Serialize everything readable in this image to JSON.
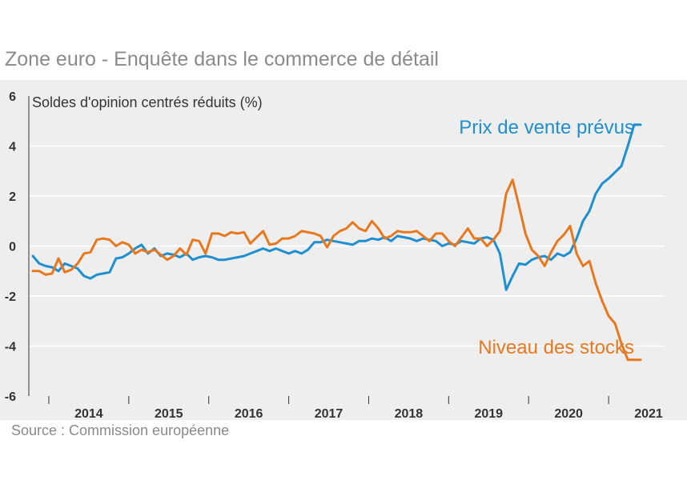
{
  "title": "Zone euro - Enquête dans le commerce de détail",
  "source": "Source : Commission européenne",
  "colors": {
    "plot_bg": "#eeeeee",
    "blue": "#1f8fcf",
    "orange": "#e8781e",
    "grid": "#ffffff",
    "axis": "#333333"
  },
  "chart_data": {
    "type": "line",
    "ylabel": "Soldes d'opinion centrés réduits (%)",
    "ylim": [
      -6,
      6
    ],
    "yticks": [
      6,
      4,
      2,
      0,
      -2,
      -4,
      -6
    ],
    "xlim": [
      2013.75,
      2021.7
    ],
    "year_labels": [
      "2014",
      "2015",
      "2016",
      "2017",
      "2018",
      "2019",
      "2020",
      "2021"
    ],
    "series": [
      {
        "name": "Prix de vente prévus",
        "color": "#1f8fcf",
        "label_position": "upper-right",
        "x": [
          2013.8,
          2013.88,
          2013.96,
          2014.04,
          2014.12,
          2014.2,
          2014.28,
          2014.36,
          2014.44,
          2014.52,
          2014.6,
          2014.68,
          2014.76,
          2014.84,
          2014.92,
          2015.0,
          2015.08,
          2015.16,
          2015.24,
          2015.32,
          2015.4,
          2015.48,
          2015.56,
          2015.64,
          2015.72,
          2015.8,
          2015.88,
          2015.96,
          2016.04,
          2016.12,
          2016.2,
          2016.28,
          2016.36,
          2016.44,
          2016.52,
          2016.6,
          2016.68,
          2016.76,
          2016.84,
          2016.92,
          2017.0,
          2017.08,
          2017.16,
          2017.24,
          2017.32,
          2017.4,
          2017.48,
          2017.56,
          2017.64,
          2017.72,
          2017.8,
          2017.88,
          2017.96,
          2018.04,
          2018.12,
          2018.2,
          2018.28,
          2018.36,
          2018.44,
          2018.52,
          2018.6,
          2018.68,
          2018.76,
          2018.84,
          2018.92,
          2019.0,
          2019.08,
          2019.16,
          2019.24,
          2019.32,
          2019.4,
          2019.48,
          2019.56,
          2019.64,
          2019.72,
          2019.8,
          2019.88,
          2019.96,
          2020.04,
          2020.12,
          2020.2,
          2020.28,
          2020.36,
          2020.44,
          2020.52,
          2020.6,
          2020.68,
          2020.76,
          2020.84,
          2020.92,
          2021.0,
          2021.08,
          2021.16,
          2021.24,
          2021.32,
          2021.4
        ],
        "values": [
          -0.4,
          -0.7,
          -0.8,
          -0.85,
          -1.0,
          -0.7,
          -0.8,
          -0.9,
          -1.2,
          -1.3,
          -1.15,
          -1.1,
          -1.05,
          -0.5,
          -0.45,
          -0.3,
          -0.1,
          0.05,
          -0.3,
          -0.1,
          -0.4,
          -0.3,
          -0.35,
          -0.45,
          -0.3,
          -0.55,
          -0.45,
          -0.4,
          -0.45,
          -0.55,
          -0.55,
          -0.5,
          -0.45,
          -0.4,
          -0.3,
          -0.2,
          -0.1,
          -0.2,
          -0.1,
          -0.2,
          -0.3,
          -0.2,
          -0.3,
          -0.15,
          0.15,
          0.15,
          0.25,
          0.2,
          0.15,
          0.1,
          0.05,
          0.2,
          0.2,
          0.3,
          0.25,
          0.35,
          0.2,
          0.4,
          0.35,
          0.3,
          0.2,
          0.3,
          0.25,
          0.2,
          0.0,
          0.1,
          0.05,
          0.2,
          0.15,
          0.1,
          0.3,
          0.35,
          0.25,
          -0.3,
          -1.75,
          -1.2,
          -0.7,
          -0.75,
          -0.55,
          -0.45,
          -0.4,
          -0.55,
          -0.3,
          -0.4,
          -0.25,
          0.3,
          1.0,
          1.4,
          2.1,
          2.5,
          2.7,
          2.95,
          3.2,
          4.0,
          4.85,
          4.85
        ]
      },
      {
        "name": "Niveau des stocks",
        "color": "#e8781e",
        "label_position": "lower-right",
        "x": [
          2013.8,
          2013.88,
          2013.96,
          2014.04,
          2014.12,
          2014.2,
          2014.28,
          2014.36,
          2014.44,
          2014.52,
          2014.6,
          2014.68,
          2014.76,
          2014.84,
          2014.92,
          2015.0,
          2015.08,
          2015.16,
          2015.24,
          2015.32,
          2015.4,
          2015.48,
          2015.56,
          2015.64,
          2015.72,
          2015.8,
          2015.88,
          2015.96,
          2016.04,
          2016.12,
          2016.2,
          2016.28,
          2016.36,
          2016.44,
          2016.52,
          2016.6,
          2016.68,
          2016.76,
          2016.84,
          2016.92,
          2017.0,
          2017.08,
          2017.16,
          2017.24,
          2017.32,
          2017.4,
          2017.48,
          2017.56,
          2017.64,
          2017.72,
          2017.8,
          2017.88,
          2017.96,
          2018.04,
          2018.12,
          2018.2,
          2018.28,
          2018.36,
          2018.44,
          2018.52,
          2018.6,
          2018.68,
          2018.76,
          2018.84,
          2018.92,
          2019.0,
          2019.08,
          2019.16,
          2019.24,
          2019.32,
          2019.4,
          2019.48,
          2019.56,
          2019.64,
          2019.72,
          2019.8,
          2019.88,
          2019.96,
          2020.04,
          2020.12,
          2020.2,
          2020.28,
          2020.36,
          2020.44,
          2020.52,
          2020.6,
          2020.68,
          2020.76,
          2020.84,
          2020.92,
          2021.0,
          2021.08,
          2021.16,
          2021.24,
          2021.32,
          2021.4
        ],
        "values": [
          -1.0,
          -1.0,
          -1.15,
          -1.1,
          -0.5,
          -1.05,
          -0.95,
          -0.7,
          -0.3,
          -0.25,
          0.25,
          0.3,
          0.25,
          0.0,
          0.15,
          0.05,
          -0.3,
          -0.15,
          -0.25,
          -0.15,
          -0.35,
          -0.55,
          -0.4,
          -0.1,
          -0.35,
          0.25,
          0.2,
          -0.3,
          0.5,
          0.5,
          0.4,
          0.55,
          0.5,
          0.55,
          0.1,
          0.35,
          0.6,
          0.05,
          0.1,
          0.3,
          0.3,
          0.4,
          0.6,
          0.55,
          0.5,
          0.4,
          -0.05,
          0.4,
          0.6,
          0.7,
          0.95,
          0.7,
          0.6,
          1.0,
          0.7,
          0.3,
          0.4,
          0.6,
          0.55,
          0.55,
          0.6,
          0.4,
          0.2,
          0.5,
          0.5,
          0.2,
          0.0,
          0.35,
          0.7,
          0.3,
          0.3,
          0.0,
          0.25,
          0.6,
          2.1,
          2.65,
          1.6,
          0.5,
          -0.15,
          -0.4,
          -0.8,
          -0.25,
          0.2,
          0.45,
          0.8,
          -0.3,
          -0.8,
          -0.6,
          -1.5,
          -2.2,
          -2.8,
          -3.1,
          -3.9,
          -4.55,
          -4.55,
          -4.55
        ]
      }
    ]
  }
}
